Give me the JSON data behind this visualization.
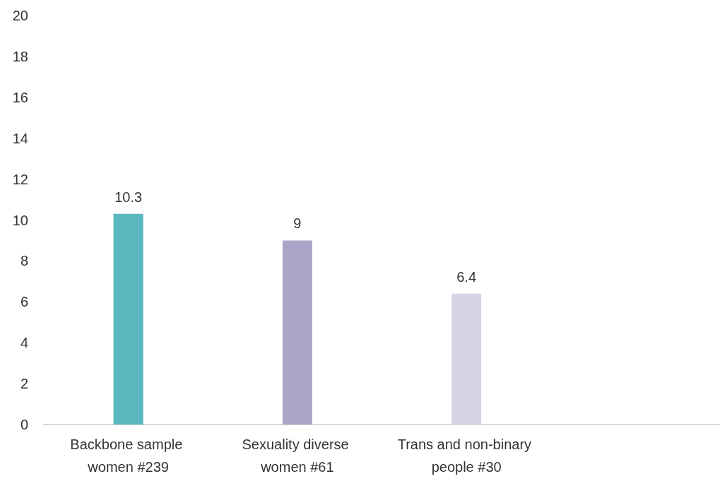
{
  "chart_data": {
    "type": "bar",
    "categories": [
      "Backbone sample women #239",
      "Sexuality diverse women #61",
      "Trans and non-binary people #30",
      null
    ],
    "values": [
      10.3,
      9,
      6.4,
      null
    ],
    "colors": [
      "#5ab8bf",
      "#aba6c9",
      "#d6d3e6",
      "#d6d3e6"
    ],
    "ylim": [
      0,
      20
    ],
    "yticks": [
      0,
      2,
      4,
      6,
      8,
      10,
      12,
      14,
      16,
      18,
      20
    ],
    "data_labels": true,
    "grid": false
  }
}
